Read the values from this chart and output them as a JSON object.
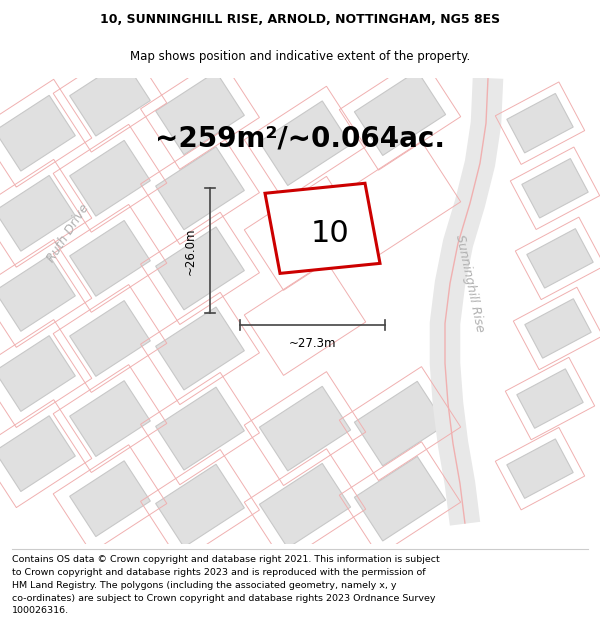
{
  "title_line1": "10, SUNNINGHILL RISE, ARNOLD, NOTTINGHAM, NG5 8ES",
  "title_line2": "Map shows position and indicative extent of the property.",
  "area_text": "~259m²/~0.064ac.",
  "plot_number": "10",
  "dim_width": "~27.3m",
  "dim_height": "~26.0m",
  "footer_lines": [
    "Contains OS data © Crown copyright and database right 2021. This information is subject",
    "to Crown copyright and database rights 2023 and is reproduced with the permission of",
    "HM Land Registry. The polygons (including the associated geometry, namely x, y",
    "co-ordinates) are subject to Crown copyright and database rights 2023 Ordnance Survey",
    "100026316."
  ],
  "bg_color": "#f2f2f2",
  "plot_color_red": "#cc0000",
  "plot_fill": "#ffffff",
  "plot_boundary_color": "#f0b0b0",
  "building_fill": "#e0e0e0",
  "building_stroke": "#c8c8c8",
  "dim_line_color": "#444444",
  "street_label_color": "#b0b0b0",
  "title_fontsize": 9,
  "subtitle_fontsize": 8.5,
  "area_fontsize": 20,
  "plot_num_fontsize": 22,
  "footer_fontsize": 6.8,
  "street_label_fontsize": 9,
  "dim_fontsize": 8.5
}
